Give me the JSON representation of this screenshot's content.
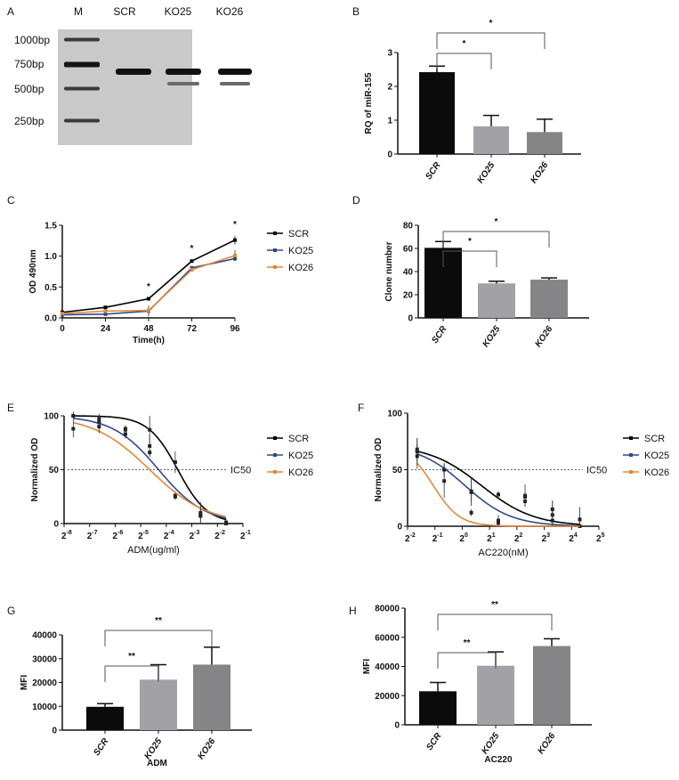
{
  "chart_data": [
    {
      "panel": "A",
      "type": "gel",
      "lane_labels": [
        "M",
        "SCR",
        "KO25",
        "KO26"
      ],
      "ladder_labels": [
        "1000bp",
        "750bp",
        "500bp",
        "250bp"
      ]
    },
    {
      "panel": "B",
      "type": "bar",
      "categories": [
        "SCR",
        "KO25",
        "KO26"
      ],
      "values": [
        2.42,
        0.82,
        0.65
      ],
      "errors": [
        0.18,
        0.32,
        0.38
      ],
      "ylabel": "RQ of miR-155",
      "xlabel": "",
      "ylim": [
        0,
        3
      ],
      "yticks": [
        "0",
        "1",
        "2",
        "3"
      ],
      "colors": [
        "#0b0b0b",
        "#a2a2a6",
        "#858587"
      ],
      "significance": [
        {
          "from": 0,
          "to": 1,
          "label": "*"
        },
        {
          "from": 0,
          "to": 2,
          "label": "*"
        }
      ]
    },
    {
      "panel": "C",
      "type": "line",
      "x": [
        0,
        24,
        48,
        72,
        96
      ],
      "xticks": [
        "0",
        "24",
        "48",
        "72",
        "96"
      ],
      "xlabel": "Time(h)",
      "ylabel": "OD 490nm",
      "xlim": [
        0,
        96
      ],
      "ylim": [
        0,
        1.5
      ],
      "yticks": [
        "0.0",
        "0.5",
        "1.0",
        "1.5"
      ],
      "series": [
        {
          "name": "SCR",
          "color": "#000000",
          "values": [
            0.09,
            0.17,
            0.31,
            0.92,
            1.26
          ],
          "errors": [
            0.01,
            0.01,
            0.01,
            0.02,
            0.07
          ]
        },
        {
          "name": "KO25",
          "color": "#2e4a8c",
          "values": [
            0.05,
            0.06,
            0.11,
            0.81,
            0.96
          ],
          "errors": [
            0.01,
            0.03,
            0.09,
            0.03,
            0.04
          ]
        },
        {
          "name": "KO26",
          "color": "#e0893a",
          "values": [
            0.07,
            0.11,
            0.12,
            0.78,
            1.01
          ],
          "errors": [
            0.02,
            0.03,
            0.02,
            0.03,
            0.09
          ]
        }
      ],
      "annotations": [
        {
          "x": 48,
          "label": "*"
        },
        {
          "x": 72,
          "label": "*"
        },
        {
          "x": 96,
          "label": "*"
        }
      ],
      "legend": "right"
    },
    {
      "panel": "D",
      "type": "bar",
      "categories": [
        "SCR",
        "KO25",
        "KO26"
      ],
      "values": [
        60.5,
        29.8,
        33.0
      ],
      "errors": [
        5.5,
        1.8,
        1.5
      ],
      "ylabel": "Clone number",
      "xlabel": "",
      "ylim": [
        0,
        80
      ],
      "yticks": [
        "0",
        "20",
        "40",
        "60",
        "80"
      ],
      "colors": [
        "#0b0b0b",
        "#a2a2a6",
        "#858587"
      ],
      "significance": [
        {
          "from": 0,
          "to": 1,
          "label": "*"
        },
        {
          "from": 0,
          "to": 2,
          "label": "*"
        }
      ]
    },
    {
      "panel": "E",
      "type": "dose-response",
      "x_scale": "log2",
      "xtick_base": "2",
      "xtick_exponents": [
        "-8",
        "-7",
        "-6",
        "-5",
        "-4",
        "-3",
        "-2",
        "-1"
      ],
      "xlim_log2": [
        -8,
        -1
      ],
      "x_log2": [
        -7.64,
        -6.63,
        -5.6,
        -4.65,
        -3.65,
        -2.66,
        -1.66
      ],
      "xlabel": "ADM(ug/ml)",
      "ylabel": "Normalized OD",
      "ylim": [
        0,
        100
      ],
      "yticks": [
        "0",
        "50",
        "100"
      ],
      "reference_line": {
        "y": 50,
        "label": "IC50"
      },
      "series": [
        {
          "name": "SCR",
          "color": "#000000",
          "values": [
            100,
            97,
            88,
            87,
            57,
            8,
            1
          ],
          "errors": [
            4,
            5,
            3,
            13,
            10,
            12,
            3
          ],
          "fit": {
            "top": 100,
            "bottom": 0,
            "log_ic50": -3.55,
            "hill": 2.5
          }
        },
        {
          "name": "KO25",
          "color": "#2e4a8c",
          "values": [
            100,
            94,
            87,
            72,
            26,
            10,
            1
          ],
          "errors": [
            3,
            4,
            4,
            10,
            4,
            6,
            3
          ],
          "fit": {
            "top": 100,
            "bottom": 0,
            "log_ic50": -4.3,
            "hill": 1.6
          }
        },
        {
          "name": "KO26",
          "color": "#e0893a",
          "values": [
            88,
            90,
            83,
            66,
            25,
            7,
            0
          ],
          "errors": [
            8,
            6,
            4,
            3,
            3,
            8,
            2
          ],
          "fit": {
            "top": 100,
            "bottom": 0,
            "log_ic50": -4.65,
            "hill": 1.3
          }
        }
      ],
      "legend": "right"
    },
    {
      "panel": "F",
      "type": "dose-response",
      "x_scale": "log2",
      "xtick_base": "2",
      "xtick_exponents": [
        "-2",
        "-1",
        "0",
        "1",
        "2",
        "3",
        "4",
        "5"
      ],
      "xlim_log2": [
        -2,
        5
      ],
      "x_log2": [
        -1.65,
        -0.66,
        0.33,
        1.32,
        2.3,
        3.3,
        4.3
      ],
      "xlabel": "AC220(nM)",
      "ylabel": "Normalized OD",
      "ylim": [
        0,
        100
      ],
      "yticks": [
        "0",
        "50",
        "100"
      ],
      "reference_line": {
        "y": 50,
        "label": "IC50"
      },
      "series": [
        {
          "name": "SCR",
          "color": "#000000",
          "values": [
            68,
            50,
            30,
            28,
            26,
            10,
            0
          ],
          "errors": [
            10,
            6,
            12,
            3,
            4,
            12,
            17
          ],
          "fit": {
            "top": 72,
            "bottom": 0,
            "log_ic50": 0.7,
            "hill": 1.5
          }
        },
        {
          "name": "KO25",
          "color": "#2e4a8c",
          "values": [
            66,
            40,
            31,
            3,
            22,
            5,
            0
          ],
          "errors": [
            12,
            15,
            10,
            6,
            5,
            10,
            7
          ],
          "fit": {
            "top": 72,
            "bottom": 0,
            "log_ic50": 0.1,
            "hill": 1.7
          }
        },
        {
          "name": "KO26",
          "color": "#e0893a",
          "values": [
            62,
            50,
            12,
            5,
            27,
            15,
            6
          ],
          "errors": [
            11,
            5,
            3,
            5,
            10,
            8,
            4
          ],
          "fit": {
            "top": 72,
            "bottom": 0,
            "log_ic50": -1.06,
            "hill": 3
          }
        }
      ],
      "legend": "right"
    },
    {
      "panel": "G",
      "type": "bar",
      "categories": [
        "SCR",
        "KO25",
        "KO26"
      ],
      "values": [
        9800,
        21200,
        27500
      ],
      "errors": [
        1300,
        6300,
        7300
      ],
      "ylabel": "MFI",
      "xlabel": "ADM",
      "ylim": [
        0,
        40000
      ],
      "yticks": [
        "0",
        "10000",
        "20000",
        "30000",
        "40000"
      ],
      "colors": [
        "#0b0b0b",
        "#a2a2a6",
        "#858587"
      ],
      "significance": [
        {
          "from": 0,
          "to": 1,
          "label": "**"
        },
        {
          "from": 0,
          "to": 2,
          "label": "**"
        }
      ]
    },
    {
      "panel": "H",
      "type": "bar",
      "categories": [
        "SCR",
        "KO25",
        "KO26"
      ],
      "values": [
        23000,
        40500,
        54000
      ],
      "errors": [
        6000,
        9500,
        5000
      ],
      "ylabel": "MFI",
      "xlabel": "AC220",
      "ylim": [
        0,
        80000
      ],
      "yticks": [
        "0",
        "20000",
        "40000",
        "60000",
        "80000"
      ],
      "colors": [
        "#0b0b0b",
        "#a2a2a6",
        "#858587"
      ],
      "significance": [
        {
          "from": 0,
          "to": 1,
          "label": "**"
        },
        {
          "from": 0,
          "to": 2,
          "label": "**"
        }
      ]
    }
  ]
}
